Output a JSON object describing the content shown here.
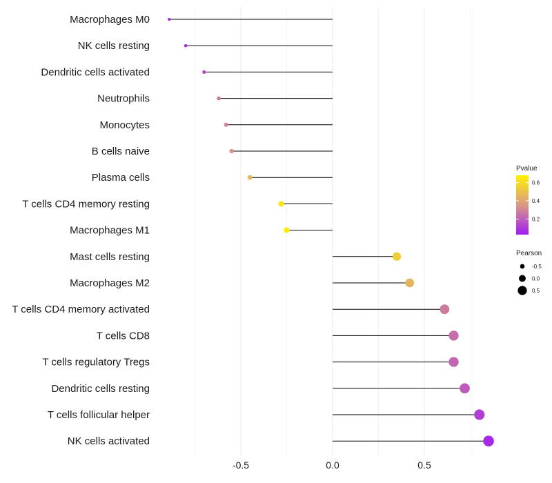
{
  "chart_data": {
    "type": "lollipop",
    "title": "",
    "xlabel": "",
    "ylabel": "",
    "xlim": [
      -0.88,
      0.86
    ],
    "x_ticks": [
      -0.5,
      0.0,
      0.5
    ],
    "x_tick_labels": [
      "-0.5",
      "0.0",
      "0.5"
    ],
    "grid": "vertical",
    "categories": [
      "Macrophages M0",
      "NK cells resting",
      "Dendritic cells activated",
      "Neutrophils",
      "Monocytes",
      "B cells naive",
      "Plasma cells",
      "T cells CD4 memory resting",
      "Macrophages M1",
      "Mast cells resting",
      "Macrophages M2",
      "T cells CD4 memory activated",
      "T cells CD8",
      "T cells regulatory  Tregs ",
      "Dendritic cells resting",
      "T cells follicular helper",
      "NK cells activated"
    ],
    "pearson": [
      -0.89,
      -0.8,
      -0.7,
      -0.62,
      -0.58,
      -0.55,
      -0.45,
      -0.28,
      -0.25,
      0.35,
      0.42,
      0.61,
      0.66,
      0.66,
      0.72,
      0.8,
      0.85
    ],
    "pvalue": [
      0.04,
      0.08,
      0.14,
      0.28,
      0.3,
      0.33,
      0.46,
      0.63,
      0.65,
      0.55,
      0.45,
      0.28,
      0.24,
      0.22,
      0.19,
      0.12,
      0.06
    ],
    "legend": {
      "color": {
        "title": "Pvalue",
        "ticks": [
          0.2,
          0.4,
          0.6
        ],
        "tick_labels": [
          "0.2",
          "0.4",
          "0.6"
        ],
        "range": [
          0.03,
          0.68
        ],
        "low_color": "#a21cf0",
        "mid_color": "#d99a86",
        "high_color": "#fff200",
        "placement": "right"
      },
      "size": {
        "title": "Pearson",
        "values": [
          -0.5,
          0.0,
          0.5
        ],
        "labels": [
          "-0.5",
          "0.0",
          "0.5"
        ],
        "placement": "right"
      }
    },
    "colors": {
      "stem": "#000000",
      "grid": "#ebebeb"
    }
  }
}
